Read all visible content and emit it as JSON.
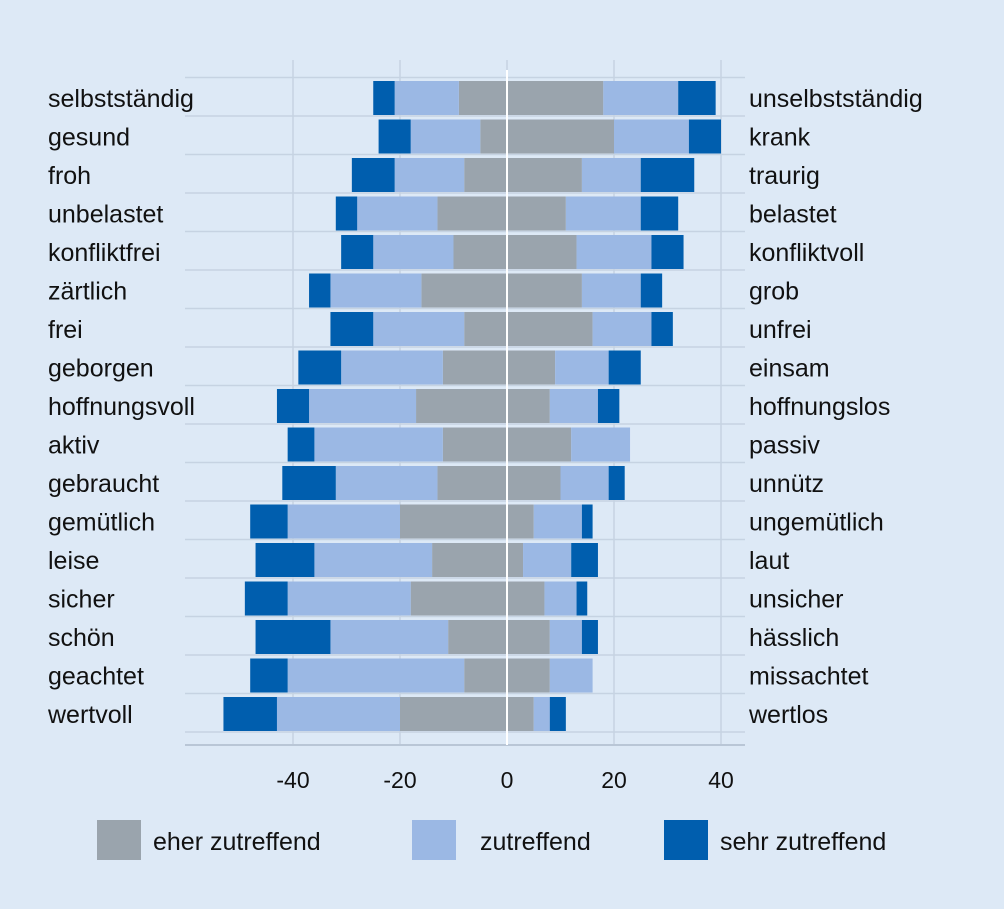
{
  "chart_data": {
    "type": "bar",
    "orientation": "horizontal",
    "stacked": "diverging",
    "xlim": [
      -54,
      44
    ],
    "xticks": [
      -40,
      -20,
      0,
      20,
      40
    ],
    "grid": true,
    "legend_position": "bottom",
    "left_labels": [
      "selbstständig",
      "gesund",
      "froh",
      "unbelastet",
      "konfliktfrei",
      "zärtlich",
      "frei",
      "geborgen",
      "hoffnungsvoll",
      "aktiv",
      "gebraucht",
      "gemütlich",
      "leise",
      "sicher",
      "schön",
      "geachtet",
      "wertvoll"
    ],
    "right_labels": [
      "unselbstständig",
      "krank",
      "traurig",
      "belastet",
      "konfliktvoll",
      "grob",
      "unfrei",
      "einsam",
      "hoffnungslos",
      "passiv",
      "unnütz",
      "ungemütlich",
      "laut",
      "unsicher",
      "hässlich",
      "missachtet",
      "wertlos"
    ],
    "series": [
      {
        "name": "eher zutreffend",
        "color": "#9aa4ad",
        "left": [
          9,
          5,
          8,
          13,
          10,
          16,
          8,
          12,
          17,
          12,
          13,
          20,
          14,
          18,
          11,
          8,
          20
        ],
        "right": [
          18,
          20,
          14,
          11,
          13,
          14,
          16,
          9,
          8,
          12,
          10,
          5,
          3,
          7,
          8,
          8,
          5
        ]
      },
      {
        "name": "zutreffend",
        "color": "#9bb8e4",
        "left": [
          12,
          13,
          13,
          15,
          15,
          17,
          17,
          19,
          20,
          24,
          19,
          21,
          22,
          23,
          22,
          33,
          23
        ],
        "right": [
          14,
          14,
          11,
          14,
          14,
          11,
          11,
          10,
          9,
          11,
          9,
          9,
          9,
          6,
          6,
          8,
          3
        ]
      },
      {
        "name": "sehr zutreffend",
        "color": "#005eae",
        "left": [
          4,
          6,
          8,
          4,
          6,
          4,
          8,
          8,
          6,
          5,
          10,
          7,
          11,
          8,
          14,
          7,
          10
        ],
        "right": [
          7,
          6,
          10,
          7,
          6,
          4,
          4,
          6,
          4,
          0,
          3,
          2,
          5,
          2,
          3,
          0,
          3
        ]
      }
    ]
  }
}
